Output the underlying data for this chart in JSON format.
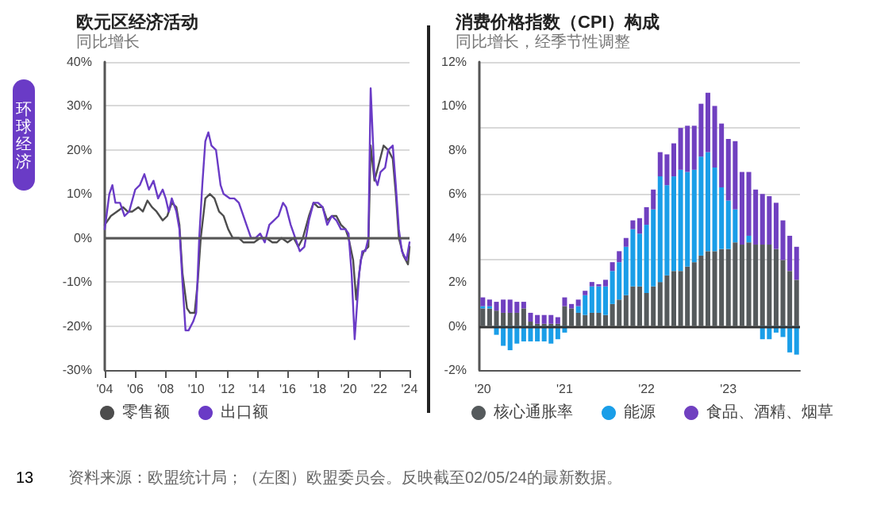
{
  "chart_data": [
    {
      "type": "line",
      "title": "欧元区经济活动",
      "subtitle": "同比增长",
      "annotations": [
        "环球经济",
        "13",
        "资料来源：欧盟统计局；（左图）欧盟委员会。反映截至02/05/24的最新数据。"
      ],
      "series": [
        {
          "name": "零售额",
          "color": "#4d4d4d",
          "x": [
            2004.0,
            2004.4,
            2004.8,
            2005.2,
            2005.5,
            2005.8,
            2006.2,
            2006.5,
            2006.8,
            2007.1,
            2007.4,
            2007.8,
            2008.1,
            2008.4,
            2008.7,
            2008.9,
            2009.1,
            2009.4,
            2009.6,
            2009.9,
            2010.1,
            2010.3,
            2010.6,
            2010.9,
            2011.2,
            2011.5,
            2011.8,
            2012.1,
            2012.4,
            2012.8,
            2013.1,
            2013.4,
            2013.8,
            2014.2,
            2014.6,
            2015.0,
            2015.3,
            2015.6,
            2016.0,
            2016.4,
            2016.7,
            2017.0,
            2017.4,
            2017.7,
            2018.0,
            2018.3,
            2018.6,
            2018.9,
            2019.2,
            2019.5,
            2019.8,
            2020.0,
            2020.3,
            2020.5,
            2020.8,
            2021.0,
            2021.3,
            2021.45,
            2021.7,
            2022.0,
            2022.3,
            2022.6,
            2022.9,
            2023.1,
            2023.3,
            2023.6,
            2023.9,
            2024.0
          ],
          "values": [
            3,
            5,
            6,
            7,
            6,
            6,
            7,
            6,
            8.5,
            7,
            6,
            4,
            5,
            8,
            7,
            3,
            -8,
            -16,
            -17,
            -17,
            -10,
            0,
            9,
            10,
            9,
            6,
            5,
            2,
            0,
            0,
            -1,
            -1,
            -1,
            0,
            0,
            -1,
            -1,
            0,
            -1,
            0,
            -2,
            0,
            5,
            8,
            7,
            7,
            4,
            5,
            5,
            3,
            2,
            0,
            -5,
            -14,
            -5,
            -3,
            -2,
            21,
            13,
            17,
            21,
            20,
            18,
            10,
            0,
            -4,
            -6,
            -2
          ]
        },
        {
          "name": "出口额",
          "color": "#6a3bc6",
          "x": [
            2004.0,
            2004.3,
            2004.5,
            2004.7,
            2005.0,
            2005.3,
            2005.6,
            2006.0,
            2006.3,
            2006.6,
            2006.9,
            2007.2,
            2007.5,
            2007.8,
            2008.0,
            2008.2,
            2008.4,
            2008.7,
            2008.9,
            2009.1,
            2009.3,
            2009.5,
            2009.8,
            2010.0,
            2010.2,
            2010.4,
            2010.6,
            2010.8,
            2011.0,
            2011.3,
            2011.6,
            2011.8,
            2012.2,
            2012.5,
            2012.8,
            2013.0,
            2013.3,
            2013.6,
            2013.9,
            2014.2,
            2014.5,
            2014.8,
            2015.1,
            2015.4,
            2015.7,
            2015.9,
            2016.2,
            2016.5,
            2016.8,
            2017.1,
            2017.4,
            2017.7,
            2018.0,
            2018.3,
            2018.6,
            2018.9,
            2019.2,
            2019.5,
            2019.8,
            2020.0,
            2020.2,
            2020.4,
            2020.7,
            2020.9,
            2021.1,
            2021.3,
            2021.45,
            2021.7,
            2021.9,
            2022.1,
            2022.4,
            2022.6,
            2022.9,
            2023.1,
            2023.3,
            2023.5,
            2023.8,
            2024.0
          ],
          "values": [
            2,
            10,
            12,
            8,
            8,
            5,
            6,
            11,
            12,
            14.5,
            11,
            13,
            9,
            11,
            9,
            6,
            9,
            6,
            2,
            -10,
            -21,
            -21,
            -19,
            -17,
            0,
            12,
            22,
            24,
            21,
            20,
            12,
            10,
            9,
            9,
            8,
            6,
            3,
            0,
            0,
            1,
            -1,
            3,
            4,
            5,
            8,
            7,
            3,
            0,
            -3,
            -2,
            4,
            8,
            8,
            7,
            3,
            5,
            4,
            2,
            2,
            1,
            -8,
            -23,
            -8,
            -3,
            -3,
            0,
            34,
            14,
            12,
            15,
            16,
            20,
            21,
            12,
            2,
            -3,
            -5,
            -1
          ]
        }
      ],
      "xlim": [
        2004,
        2024
      ],
      "xticks": [
        {
          "value": 2004,
          "label": "'04"
        },
        {
          "value": 2006,
          "label": "'06"
        },
        {
          "value": 2008,
          "label": "'08"
        },
        {
          "value": 2010,
          "label": "'10"
        },
        {
          "value": 2012,
          "label": "'12"
        },
        {
          "value": 2014,
          "label": "'14"
        },
        {
          "value": 2016,
          "label": "'16"
        },
        {
          "value": 2018,
          "label": "'18"
        },
        {
          "value": 2020,
          "label": "'20"
        },
        {
          "value": 2022,
          "label": "'22"
        },
        {
          "value": 2024,
          "label": "'24"
        }
      ],
      "ylim": [
        -30,
        40
      ],
      "yticks": [
        {
          "value": -30,
          "label": "-30%"
        },
        {
          "value": -20,
          "label": "-20%"
        },
        {
          "value": -10,
          "label": "-10%"
        },
        {
          "value": 0,
          "label": "0%"
        },
        {
          "value": 10,
          "label": "10%"
        },
        {
          "value": 20,
          "label": "20%"
        },
        {
          "value": 30,
          "label": "30%"
        },
        {
          "value": 40,
          "label": "40%"
        }
      ],
      "ref_lines": [
        {
          "axis": "y",
          "value": 0,
          "color": "#555555"
        }
      ],
      "grid": "y",
      "legend": "bottom",
      "marker": "none",
      "line_style": "solid"
    },
    {
      "type": "bar",
      "title": "消费价格指数（CPI）构成",
      "subtitle": "同比增长，经季节性调整",
      "stacked": true,
      "categories": [
        "'20",
        null,
        null,
        null,
        null,
        null,
        null,
        null,
        null,
        null,
        null,
        null,
        "'21",
        null,
        null,
        null,
        null,
        null,
        null,
        null,
        null,
        null,
        null,
        null,
        "'22",
        null,
        null,
        null,
        null,
        null,
        null,
        null,
        null,
        null,
        null,
        null,
        "'23",
        null,
        null,
        null,
        null,
        null,
        null,
        null,
        null,
        null,
        null
      ],
      "series": [
        {
          "name": "核心通胀率",
          "color": "#555a5c",
          "values": [
            0.8,
            0.8,
            0.7,
            0.6,
            0.6,
            0.6,
            0.8,
            0.2,
            0.1,
            0.1,
            0.1,
            0.1,
            0.9,
            0.8,
            0.6,
            0.5,
            0.6,
            0.6,
            0.5,
            1.0,
            1.2,
            1.4,
            1.8,
            1.8,
            1.5,
            1.8,
            2.0,
            2.3,
            2.5,
            2.5,
            2.7,
            2.9,
            3.2,
            3.4,
            3.4,
            3.5,
            3.5,
            3.8,
            3.7,
            3.8,
            3.7,
            3.7,
            3.7,
            3.5,
            3.0,
            2.5,
            2.1
          ]
        },
        {
          "name": "能源",
          "color": "#1a9ee8",
          "values": [
            0.1,
            0.1,
            -0.4,
            -0.9,
            -1.1,
            -0.8,
            -0.7,
            -0.7,
            -0.7,
            -0.7,
            -0.8,
            -0.6,
            -0.3,
            null,
            0.3,
            0.9,
            1.2,
            1.2,
            1.3,
            1.5,
            1.7,
            2.2,
            2.6,
            2.4,
            3.1,
            3.5,
            4.8,
            4.1,
            4.3,
            4.6,
            4.3,
            4.2,
            4.5,
            4.5,
            3.8,
            2.8,
            2.2,
            1.5,
            null,
            0.3,
            null,
            -0.6,
            -0.6,
            -0.3,
            -0.5,
            -1.2,
            -1.3
          ]
        },
        {
          "name": "食品、酒精、烟草",
          "color": "#7040c0",
          "values": [
            0.4,
            0.3,
            0.4,
            0.6,
            0.6,
            0.5,
            0.3,
            0.4,
            0.4,
            0.4,
            0.4,
            0.3,
            0.4,
            0.2,
            0.3,
            0.2,
            0.2,
            0.1,
            0.3,
            0.4,
            0.5,
            0.4,
            0.4,
            0.7,
            0.8,
            0.9,
            1.1,
            1.4,
            1.5,
            1.9,
            2.1,
            2.0,
            2.4,
            2.7,
            2.8,
            2.9,
            2.8,
            3.1,
            3.3,
            2.9,
            2.5,
            2.3,
            2.2,
            2.1,
            1.8,
            1.6,
            1.5
          ]
        }
      ],
      "ylim": [
        -2,
        12
      ],
      "yticks": [
        {
          "value": -2,
          "label": "-2%"
        },
        {
          "value": 0,
          "label": "0%"
        },
        {
          "value": 2,
          "label": "2%"
        },
        {
          "value": 4,
          "label": "4%"
        },
        {
          "value": 6,
          "label": "6%"
        },
        {
          "value": 8,
          "label": "8%"
        },
        {
          "value": 10,
          "label": "10%"
        },
        {
          "value": 12,
          "label": "12%"
        }
      ],
      "ref_lines": [
        {
          "axis": "y",
          "value": 0,
          "color": "#333333"
        }
      ],
      "grid": "y",
      "legend": "bottom"
    }
  ]
}
